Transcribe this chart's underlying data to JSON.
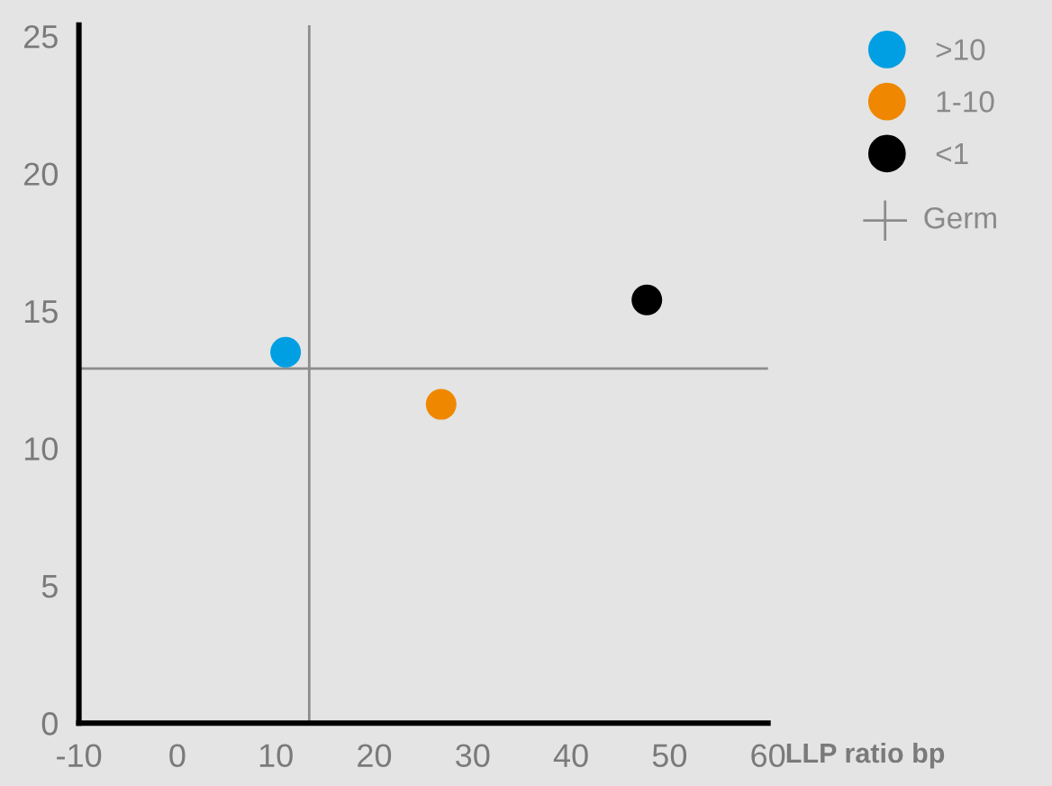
{
  "chart_data": {
    "type": "scatter",
    "xlabel": "LLP ratio bp",
    "xlim": [
      -10,
      60
    ],
    "xticks": [
      -10,
      0,
      10,
      20,
      30,
      40,
      50,
      60
    ],
    "ylim": [
      0,
      25.4
    ],
    "yticks": [
      0,
      5,
      10,
      15,
      20,
      25
    ],
    "series": [
      {
        "name": ">10",
        "color": "#009fe3",
        "x": [
          11.0
        ],
        "values": [
          13.5
        ]
      },
      {
        "name": "1-10",
        "color": "#f08700",
        "x": [
          26.8
        ],
        "values": [
          11.6
        ]
      },
      {
        "name": "<1",
        "color": "#000000",
        "x": [
          47.7
        ],
        "values": [
          15.4
        ]
      }
    ],
    "ref_lines": [
      {
        "axis": "x",
        "value": 13.4,
        "color": "#8c8c8c"
      },
      {
        "axis": "y",
        "value": 12.9,
        "color": "#8c8c8c"
      }
    ],
    "annotations": [
      "Germ"
    ],
    "marker": "circle",
    "grid": false,
    "legend": "top right"
  }
}
